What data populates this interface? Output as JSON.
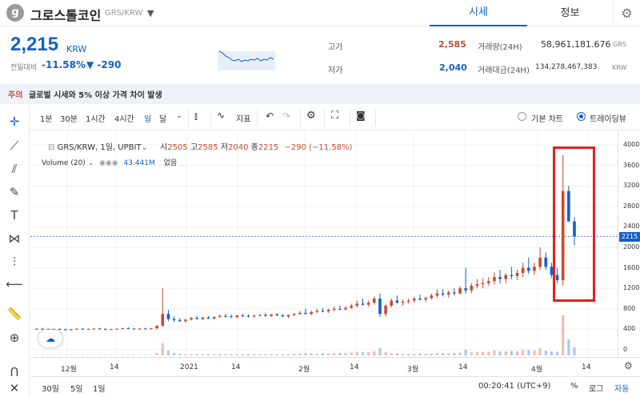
{
  "header": {
    "logo": "g",
    "name": "그로스톨코인",
    "pair": "GRS/KRW",
    "dropdown_icon": "chevron-down-icon",
    "tabs": [
      "시세",
      "정보"
    ],
    "settings_icon": "gear-icon"
  },
  "summary": {
    "price": "2,215",
    "unit": "KRW",
    "prev_label": "전일대비",
    "change_pct": "-11.58%",
    "change_abs": "▼ -290",
    "high_label": "고가",
    "high": "2,585",
    "low_label": "저가",
    "low": "2,040",
    "vol_label": "거래량(24H)",
    "vol": "58,961,181.676",
    "vol_unit": "GRS",
    "amt_label": "거래대금(24H)",
    "amt": "134,278,467,383",
    "amt_unit": "KRW"
  },
  "notice": {
    "label": "주의",
    "text": "글로벌 시세와 5% 이상 가격 차이 발생"
  },
  "toolbar": {
    "intervals": [
      "1분",
      "30분",
      "1시간",
      "4시간",
      "일",
      "달"
    ],
    "indicator_label": "지표",
    "basic_chart": "기본 차트",
    "trading_view": "트레이딩뷰"
  },
  "legend": {
    "symbol": "GRS/KRW, 1일, UPBIT",
    "open_label": "시",
    "open": "2505",
    "high_label": "고",
    "high": "2585",
    "low_label": "저",
    "low": "2040",
    "close_label": "종",
    "close": "2215",
    "change": "−290 (−11.58%)",
    "volume_label": "Volume (20)",
    "volume_value": "43.441M",
    "volume_extra": "없음"
  },
  "axis": {
    "y_ticks": [
      "4000",
      "3600",
      "3200",
      "2800",
      "2400",
      "2000",
      "1600",
      "1200",
      "800",
      "400",
      "0"
    ],
    "price_tag": "2215",
    "x_ticks": [
      "12월",
      "14",
      "2021",
      "14",
      "2월",
      "14",
      "3월",
      "14",
      "4월",
      "14"
    ]
  },
  "bottom": {
    "ranges": [
      "30일",
      "5일",
      "1일"
    ],
    "time": "00:20:41 (UTC+9)",
    "pct": "%",
    "log": "로그",
    "auto": "자동"
  },
  "colors": {
    "up": "#c84a31",
    "down": "#1261c4",
    "highlight": "#e02020"
  },
  "chart_data": {
    "type": "candlestick",
    "note_ylim": [
      0,
      4000
    ],
    "candles": [
      [
        400,
        420,
        380,
        410
      ],
      [
        410,
        430,
        395,
        400
      ],
      [
        400,
        415,
        380,
        395
      ],
      [
        395,
        410,
        370,
        405
      ],
      [
        405,
        420,
        390,
        398
      ],
      [
        398,
        410,
        380,
        390
      ],
      [
        390,
        405,
        370,
        400
      ],
      [
        400,
        420,
        385,
        410
      ],
      [
        410,
        425,
        395,
        400
      ],
      [
        400,
        415,
        385,
        405
      ],
      [
        405,
        425,
        395,
        415
      ],
      [
        415,
        430,
        400,
        405
      ],
      [
        405,
        420,
        390,
        398
      ],
      [
        398,
        412,
        385,
        400
      ],
      [
        400,
        415,
        388,
        410
      ],
      [
        410,
        430,
        398,
        420
      ],
      [
        420,
        440,
        405,
        412
      ],
      [
        412,
        425,
        398,
        405
      ],
      [
        405,
        420,
        392,
        415
      ],
      [
        415,
        430,
        400,
        408
      ],
      [
        408,
        425,
        395,
        420
      ],
      [
        420,
        480,
        400,
        470
      ],
      [
        470,
        1200,
        450,
        700
      ],
      [
        700,
        780,
        560,
        600
      ],
      [
        600,
        650,
        540,
        580
      ],
      [
        580,
        620,
        540,
        560
      ],
      [
        560,
        600,
        530,
        590
      ],
      [
        590,
        640,
        570,
        620
      ],
      [
        620,
        660,
        590,
        600
      ],
      [
        600,
        640,
        580,
        630
      ],
      [
        630,
        660,
        600,
        610
      ],
      [
        610,
        650,
        590,
        640
      ],
      [
        640,
        690,
        620,
        660
      ],
      [
        660,
        700,
        630,
        650
      ],
      [
        650,
        690,
        620,
        640
      ],
      [
        640,
        680,
        610,
        670
      ],
      [
        670,
        700,
        640,
        660
      ],
      [
        660,
        690,
        630,
        650
      ],
      [
        650,
        680,
        620,
        670
      ],
      [
        670,
        700,
        650,
        680
      ],
      [
        680,
        720,
        650,
        660
      ],
      [
        660,
        700,
        640,
        690
      ],
      [
        690,
        720,
        660,
        670
      ],
      [
        670,
        700,
        640,
        650
      ],
      [
        650,
        690,
        620,
        680
      ],
      [
        680,
        720,
        660,
        700
      ],
      [
        700,
        760,
        680,
        720
      ],
      [
        720,
        800,
        690,
        700
      ],
      [
        700,
        760,
        670,
        740
      ],
      [
        740,
        800,
        720,
        760
      ],
      [
        760,
        820,
        730,
        750
      ],
      [
        750,
        800,
        720,
        780
      ],
      [
        780,
        840,
        750,
        800
      ],
      [
        800,
        860,
        770,
        790
      ],
      [
        790,
        850,
        760,
        820
      ],
      [
        820,
        900,
        800,
        860
      ],
      [
        860,
        960,
        820,
        900
      ],
      [
        900,
        1000,
        860,
        880
      ],
      [
        880,
        960,
        840,
        920
      ],
      [
        920,
        1040,
        880,
        1000
      ],
      [
        1000,
        1100,
        640,
        700
      ],
      [
        700,
        900,
        650,
        860
      ],
      [
        860,
        1000,
        820,
        960
      ],
      [
        960,
        1060,
        900,
        920
      ],
      [
        920,
        980,
        860,
        940
      ],
      [
        940,
        1000,
        900,
        960
      ],
      [
        960,
        1040,
        920,
        1000
      ],
      [
        1000,
        1080,
        960,
        980
      ],
      [
        980,
        1040,
        930,
        1010
      ],
      [
        1010,
        1100,
        980,
        1060
      ],
      [
        1060,
        1180,
        1020,
        1100
      ],
      [
        1100,
        1180,
        1040,
        1080
      ],
      [
        1080,
        1160,
        1020,
        1120
      ],
      [
        1120,
        1200,
        1060,
        1100
      ],
      [
        1100,
        1240,
        1080,
        1200
      ],
      [
        1200,
        1600,
        1100,
        1160
      ],
      [
        1160,
        1300,
        1100,
        1250
      ],
      [
        1250,
        1380,
        1200,
        1280
      ],
      [
        1280,
        1400,
        1200,
        1300
      ],
      [
        1300,
        1420,
        1250,
        1340
      ],
      [
        1340,
        1520,
        1280,
        1420
      ],
      [
        1420,
        1560,
        1300,
        1380
      ],
      [
        1380,
        1500,
        1300,
        1460
      ],
      [
        1460,
        1620,
        1380,
        1440
      ],
      [
        1440,
        1560,
        1360,
        1500
      ],
      [
        1500,
        1700,
        1420,
        1600
      ],
      [
        1600,
        1800,
        1480,
        1540
      ],
      [
        1540,
        1700,
        1460,
        1620
      ],
      [
        1620,
        2000,
        1560,
        1800
      ],
      [
        1800,
        1900,
        1560,
        1620
      ],
      [
        1620,
        1700,
        1400,
        1460
      ],
      [
        1460,
        1600,
        1300,
        1360
      ],
      [
        1360,
        3800,
        1250,
        3100
      ],
      [
        3100,
        3200,
        2500,
        2505
      ],
      [
        2505,
        2585,
        2040,
        2215
      ]
    ],
    "volumes": [
      1,
      1,
      1,
      1,
      1,
      1,
      1,
      1,
      1,
      1,
      1,
      1,
      1,
      1,
      1,
      1,
      1,
      1,
      1,
      1,
      1,
      6,
      30,
      12,
      6,
      4,
      3,
      3,
      3,
      3,
      3,
      3,
      4,
      3,
      3,
      3,
      3,
      3,
      3,
      3,
      3,
      3,
      3,
      3,
      3,
      4,
      5,
      6,
      5,
      5,
      5,
      5,
      6,
      6,
      6,
      7,
      9,
      8,
      8,
      10,
      18,
      8,
      6,
      5,
      4,
      4,
      4,
      5,
      4,
      5,
      6,
      6,
      5,
      6,
      7,
      14,
      8,
      9,
      9,
      9,
      12,
      10,
      10,
      11,
      10,
      14,
      13,
      12,
      18,
      12,
      10,
      9,
      100,
      40,
      20
    ]
  }
}
